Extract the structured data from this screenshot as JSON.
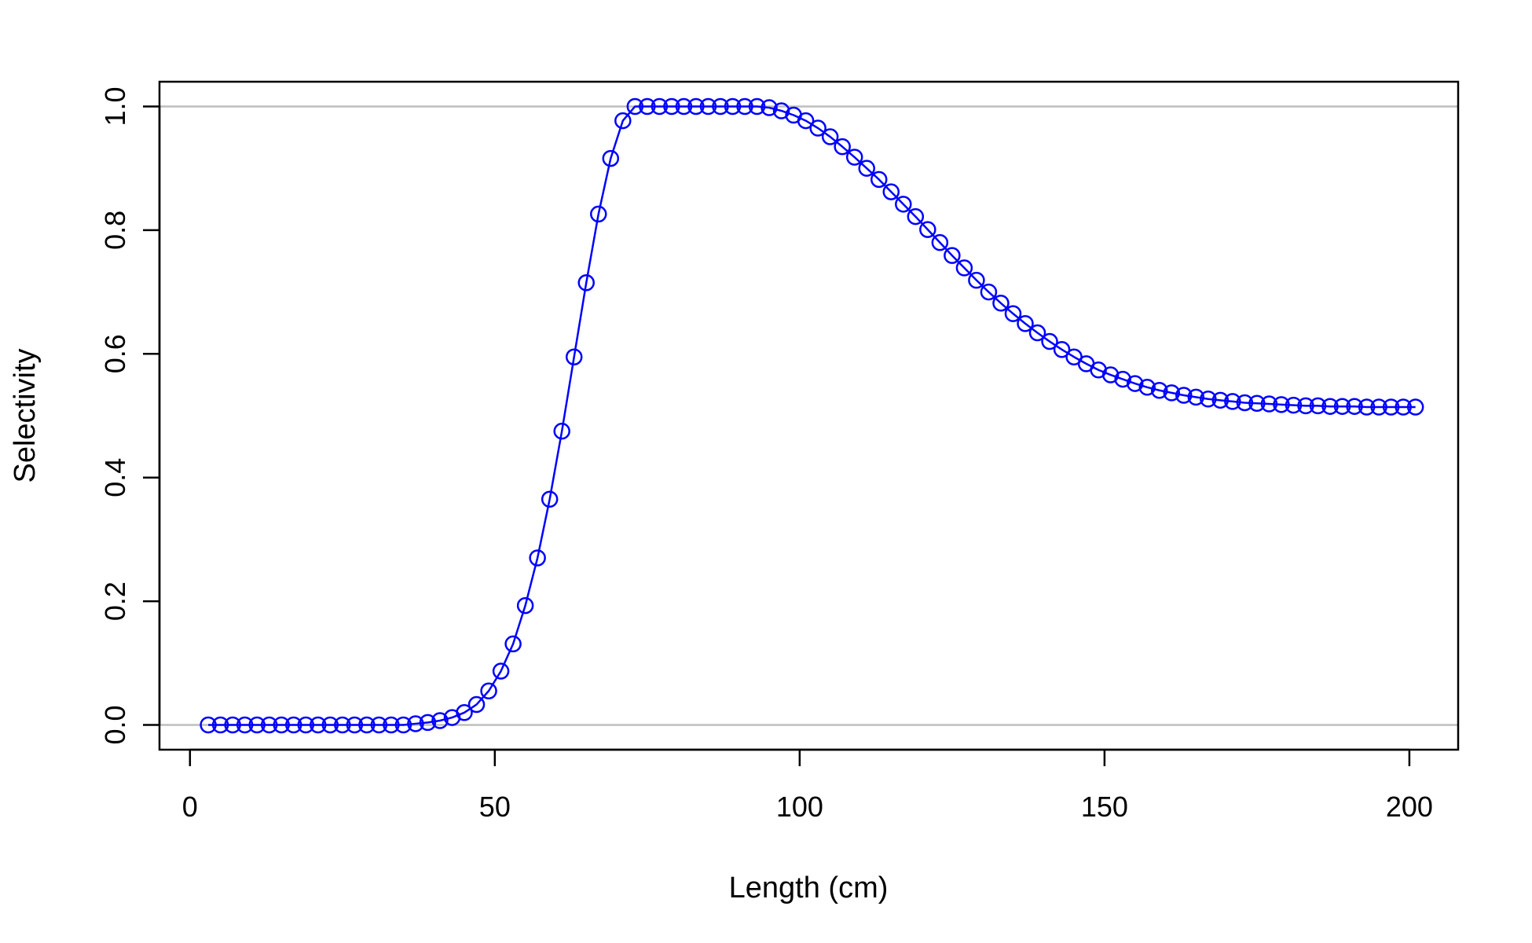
{
  "chart_data": {
    "type": "line",
    "title": "",
    "xlabel": "Length (cm)",
    "ylabel": "Selectivity",
    "xlim": [
      -5,
      208
    ],
    "ylim": [
      -0.04,
      1.04
    ],
    "x_ticks": [
      0,
      50,
      100,
      150,
      200
    ],
    "x_tick_labels": [
      "0",
      "50",
      "100",
      "150",
      "200"
    ],
    "y_ticks": [
      0,
      0.2,
      0.4,
      0.6,
      0.8,
      1.0
    ],
    "y_tick_labels": [
      "0.0",
      "0.2",
      "0.4",
      "0.6",
      "0.8",
      "1.0"
    ],
    "reference_lines": [
      0,
      1
    ],
    "reference_line_color": "#bebebe",
    "grid": false,
    "legend": "none",
    "series": [
      {
        "color": "#0000ff",
        "marker": "open-circle",
        "x": [
          3,
          5,
          7,
          9,
          11,
          13,
          15,
          17,
          19,
          21,
          23,
          25,
          27,
          29,
          31,
          33,
          35,
          37,
          39,
          41,
          43,
          45,
          47,
          49,
          51,
          53,
          55,
          57,
          59,
          61,
          63,
          65,
          67,
          69,
          71,
          73,
          75,
          77,
          79,
          81,
          83,
          85,
          87,
          89,
          91,
          93,
          95,
          97,
          99,
          101,
          103,
          105,
          107,
          109,
          111,
          113,
          115,
          117,
          119,
          121,
          123,
          125,
          127,
          129,
          131,
          133,
          135,
          137,
          139,
          141,
          143,
          145,
          147,
          149,
          151,
          153,
          155,
          157,
          159,
          161,
          163,
          165,
          167,
          169,
          171,
          173,
          175,
          177,
          179,
          181,
          183,
          185,
          187,
          189,
          191,
          193,
          195,
          197,
          199,
          201
        ],
        "y": [
          0,
          0,
          0,
          0,
          0,
          0,
          0,
          0,
          0,
          0,
          0,
          0,
          0,
          0,
          0,
          0,
          0,
          0.002,
          0.004,
          0.007,
          0.012,
          0.02,
          0.033,
          0.055,
          0.087,
          0.131,
          0.193,
          0.27,
          0.365,
          0.475,
          0.595,
          0.715,
          0.826,
          0.916,
          0.977,
          1,
          1,
          1,
          1,
          1,
          1,
          1,
          1,
          1,
          1,
          1,
          0.998,
          0.993,
          0.986,
          0.977,
          0.965,
          0.951,
          0.935,
          0.918,
          0.9,
          0.882,
          0.862,
          0.842,
          0.822,
          0.801,
          0.78,
          0.759,
          0.739,
          0.719,
          0.7,
          0.682,
          0.665,
          0.649,
          0.634,
          0.62,
          0.607,
          0.595,
          0.584,
          0.574,
          0.566,
          0.559,
          0.552,
          0.546,
          0.541,
          0.537,
          0.533,
          0.53,
          0.527,
          0.525,
          0.523,
          0.521,
          0.52,
          0.519,
          0.518,
          0.517,
          0.516,
          0.516,
          0.515,
          0.515,
          0.515,
          0.514,
          0.514,
          0.514,
          0.514,
          0.514
        ]
      }
    ]
  }
}
